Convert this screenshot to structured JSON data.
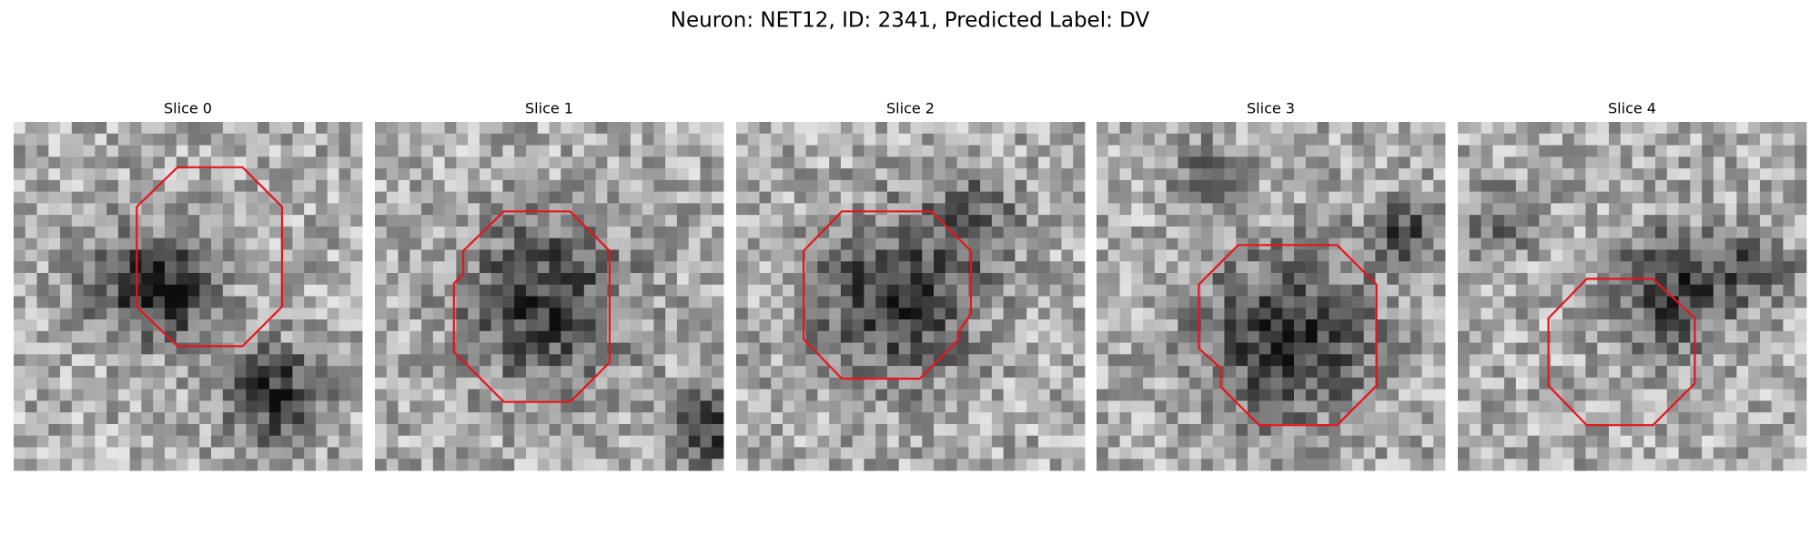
{
  "title": "Neuron: NET12, ID: 2341, Predicted Label: DV",
  "panels": [
    {
      "title": "Slice 0"
    },
    {
      "title": "Slice 1"
    },
    {
      "title": "Slice 2"
    },
    {
      "title": "Slice 3"
    },
    {
      "title": "Slice 4"
    }
  ]
}
